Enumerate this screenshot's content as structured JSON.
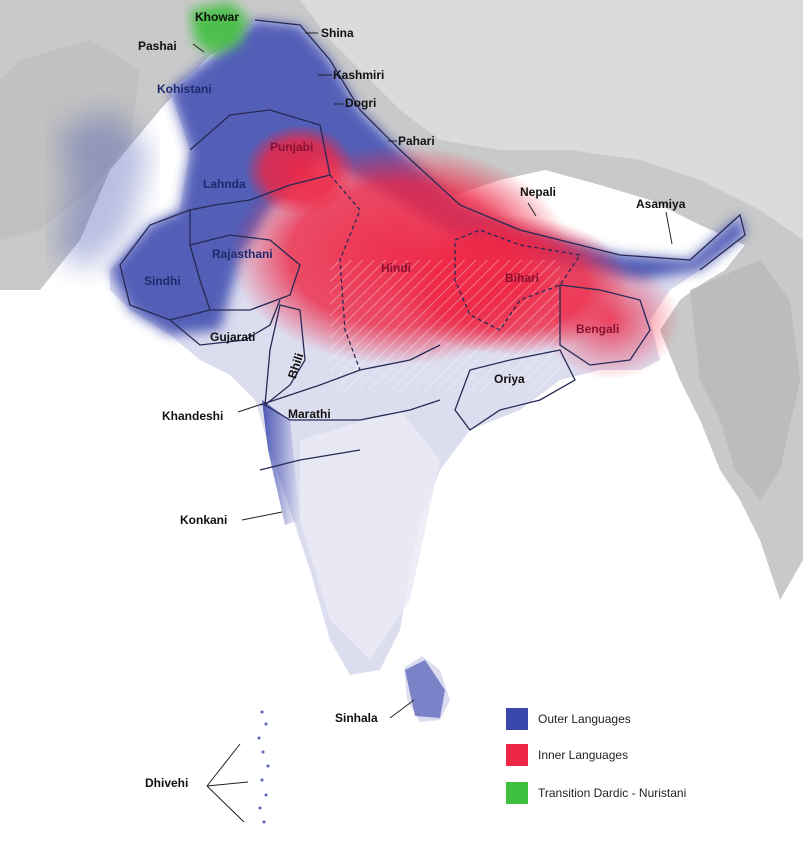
{
  "map": {
    "colors": {
      "outer": "#3a48ad",
      "inner": "#ee2644",
      "transition": "#3fbf3f",
      "relief": "#c9c9c9",
      "land_tint": "#ddddf0"
    },
    "labels": {
      "khowar": "Khowar",
      "pashai": "Pashai",
      "shina": "Shina",
      "kohistani": "Kohistani",
      "kashmiri": "Kashmiri",
      "dogri": "Dogri",
      "pahari": "Pahari",
      "punjabi": "Punjabi",
      "lahnda": "Lahnda",
      "nepali": "Nepali",
      "asamiya": "Asamiya",
      "sindhi": "Sindhi",
      "rajasthani": "Rajasthani",
      "hindi": "Hindi",
      "bihari": "Bihari",
      "bengali": "Bengali",
      "gujarati": "Gujarati",
      "bhili": "Bhili",
      "oriya": "Oriya",
      "khandeshi": "Khandeshi",
      "marathi": "Marathi",
      "konkani": "Konkani",
      "sinhala": "Sinhala",
      "dhivehi": "Dhivehi"
    },
    "legend": [
      {
        "label": "Outer Languages",
        "color": "#3a48ad"
      },
      {
        "label": "Inner Languages",
        "color": "#ee2644"
      },
      {
        "label": "Transition Dardic - Nuristani",
        "color": "#3fbf3f"
      }
    ]
  }
}
